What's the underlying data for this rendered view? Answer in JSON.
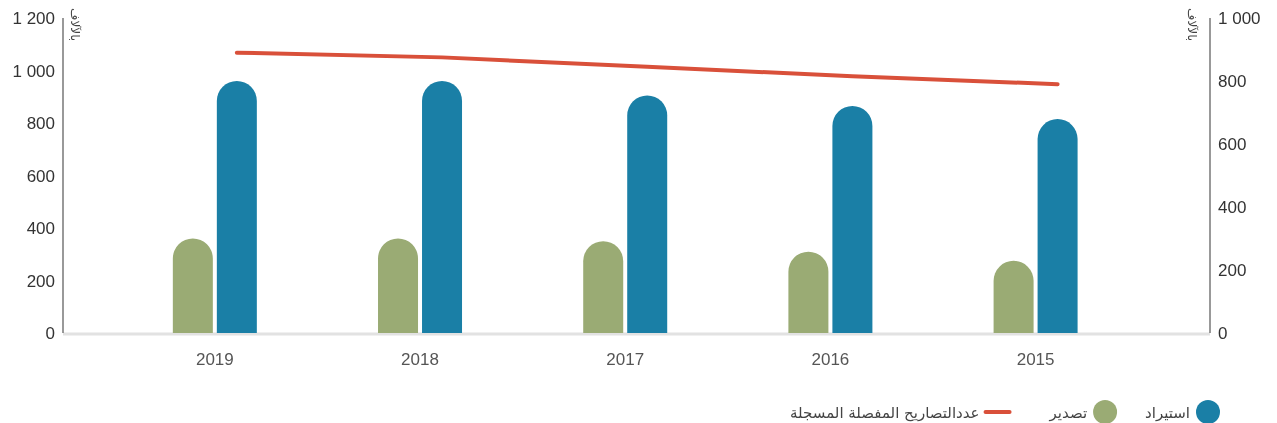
{
  "chart_data": {
    "type": "bar",
    "categories": [
      "2019",
      "2018",
      "2017",
      "2016",
      "2015"
    ],
    "series": [
      {
        "name": "تصدير",
        "color": "#9aab74",
        "values": [
          360,
          360,
          350,
          310,
          275
        ]
      },
      {
        "name": "استيراد",
        "color": "#1a7fa6",
        "values": [
          960,
          960,
          905,
          865,
          815
        ]
      },
      {
        "name": "عددالتصاريح المفصلة المسجلة",
        "type": "line",
        "axis": "y2",
        "color": "#d9503a",
        "values": [
          890,
          875,
          845,
          815,
          790
        ]
      }
    ],
    "ylabel": "بالآلاف",
    "y2label": "بالآلاف",
    "ylim": [
      0,
      1200
    ],
    "yticks": [
      0,
      200,
      400,
      600,
      800,
      {
        "value": 1000,
        "label": "1 000"
      },
      {
        "value": 1200,
        "label": "1 200"
      }
    ],
    "y2lim": [
      0,
      1000
    ],
    "y2ticks": [
      0,
      200,
      400,
      600,
      800,
      {
        "value": 1000,
        "label": "1 000"
      }
    ],
    "legend": "bottom right",
    "grid": false
  }
}
